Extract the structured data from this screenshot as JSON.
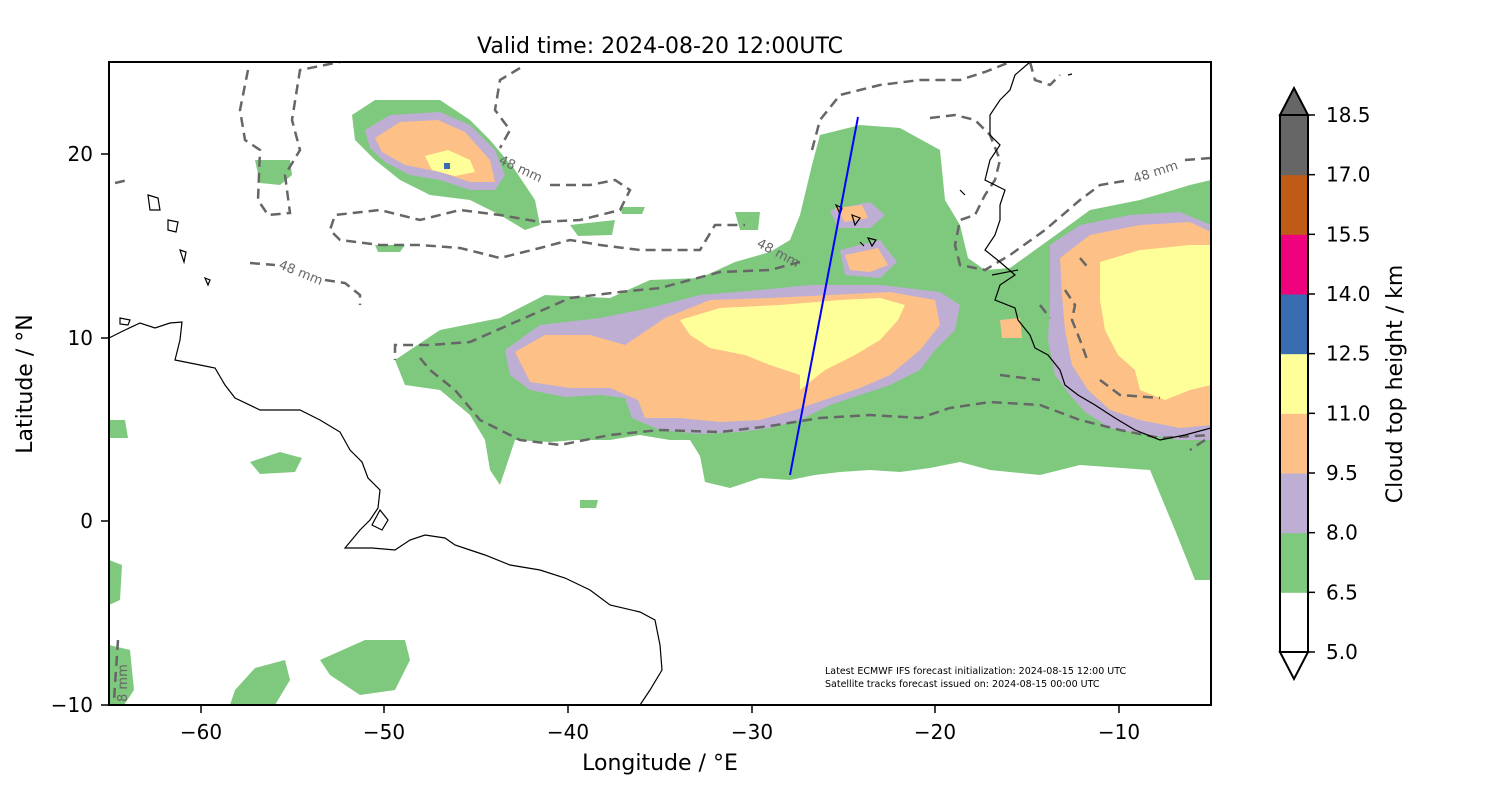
{
  "title": "Valid time: 2024-08-20 12:00UTC",
  "map": {
    "xlabel": "Longitude / °E",
    "ylabel": "Latitude / °N",
    "xlim": [
      -65,
      -5
    ],
    "ylim": [
      -10,
      25
    ],
    "xticks": [
      "−60",
      "−50",
      "−40",
      "−30",
      "−20",
      "−10"
    ],
    "yticks": [
      "20",
      "10",
      "0",
      "−10"
    ],
    "contour_labels": [
      "48 mm",
      "48 mm",
      "48 mm",
      "48 mm",
      "8 mm"
    ],
    "note_line1": "Latest ECMWF IFS forecast initialization: 2024-08-15 12:00 UTC",
    "note_line2": "Satellite tracks forecast issued on: 2024-08-15 00:00 UTC",
    "track_color": "#0000ff"
  },
  "colorbar": {
    "label": "Cloud top height / km",
    "ticks": [
      "18.5",
      "17.0",
      "15.5",
      "14.0",
      "12.5",
      "11.0",
      "9.5",
      "8.0",
      "6.5",
      "5.0"
    ],
    "colors": [
      "#ffffff",
      "#7fc97f",
      "#beaed4",
      "#fdc086",
      "#ffff99",
      "#386cb0",
      "#f0027f",
      "#bf5b17",
      "#666666"
    ]
  }
}
